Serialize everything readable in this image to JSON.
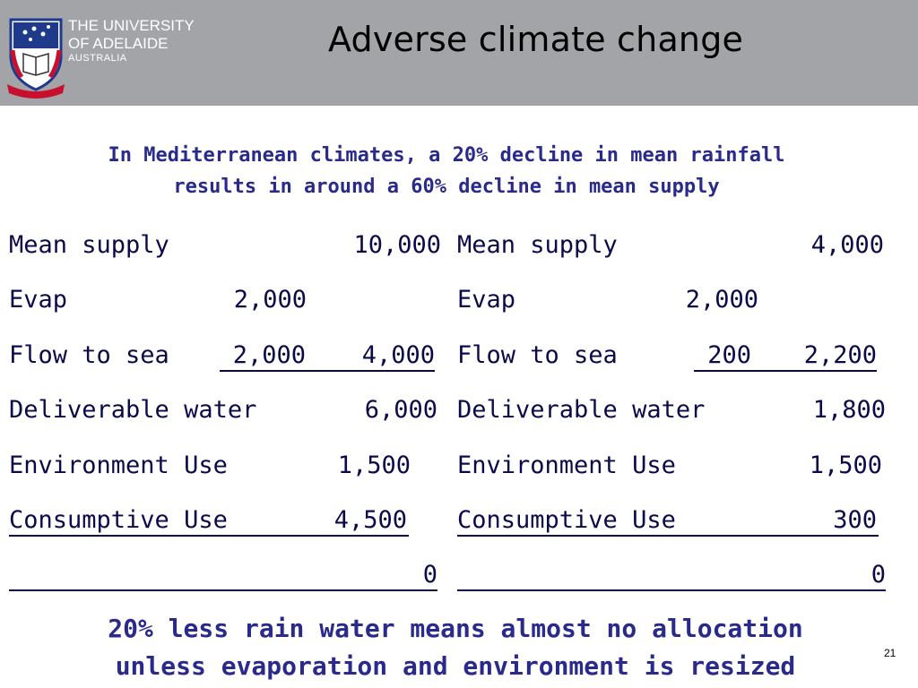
{
  "header": {
    "university_line1": "THE UNIVERSITY",
    "university_line2": "OF ADELAIDE",
    "university_line3": "AUSTRALIA",
    "title": "Adverse climate change",
    "colors": {
      "bar": "#a3a4a7",
      "crest_blue": "#1f3a8a",
      "crest_red": "#c8102e"
    }
  },
  "subtitle": {
    "line1": "In Mediterranean climates, a 20% decline in mean rainfall",
    "line2": "results in around a 60% decline in mean supply"
  },
  "left": {
    "mean_supply_label": "Mean supply",
    "mean_supply_value": "10,000",
    "evap_label": "Evap",
    "evap_value": "2,000",
    "flow_label": "Flow to sea",
    "flow_value": "2,000",
    "flow_total": "4,000",
    "deliverable_label": "Deliverable water",
    "deliverable_value": "6,000",
    "env_label": "Environment Use",
    "env_value": "1,500",
    "consumptive_label": "Consumptive Use",
    "consumptive_value": "4,500",
    "remainder_value": "0"
  },
  "right": {
    "mean_supply_label": "Mean supply",
    "mean_supply_value": "4,000",
    "evap_label": "Evap",
    "evap_value": "2,000",
    "flow_label": "Flow to sea",
    "flow_value": "200",
    "flow_total": "2,200",
    "deliverable_label": "Deliverable water",
    "deliverable_value": "1,800",
    "env_label": "Environment Use",
    "env_value": "1,500",
    "consumptive_label": "Consumptive Use",
    "consumptive_value": "300",
    "remainder_value": "0"
  },
  "conclusion": {
    "line1": "20% less rain water means almost no allocation",
    "line2": "unless evaporation and environment is resized"
  },
  "page_number": "21"
}
